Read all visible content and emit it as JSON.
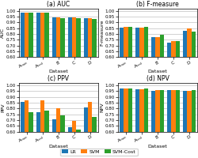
{
  "chart_data": [
    {
      "type": "bar",
      "title": "(a) AUC",
      "xlabel": "Dataset",
      "ylabel": "AUC",
      "categories": [
        "Aₜᵣₐᵢₙ",
        "Aₜₑₛₜ",
        "B",
        "C",
        "D"
      ],
      "series": [
        {
          "name": "LR",
          "values": [
            0.985,
            0.985,
            0.94,
            0.94,
            0.935
          ]
        },
        {
          "name": "SVM",
          "values": [
            0.985,
            0.985,
            0.94,
            0.94,
            0.935
          ]
        },
        {
          "name": "SVM-Cost",
          "values": [
            0.983,
            0.983,
            0.938,
            0.938,
            0.933
          ]
        }
      ],
      "ylim": [
        0.6,
        1.02
      ],
      "yticks": [
        {
          "value": 0.6,
          "label": "0.60"
        },
        0.65,
        {
          "value": 0.7,
          "label": "0.70"
        },
        0.75,
        {
          "value": 0.8,
          "label": "0.80"
        },
        0.85,
        {
          "value": 0.9,
          "label": "0.90"
        },
        0.95,
        {
          "value": 1.0,
          "label": "1.00"
        }
      ],
      "grid": true,
      "legend": "lower center"
    },
    {
      "type": "bar",
      "title": "(b) F-measure",
      "xlabel": "Dataset",
      "ylabel": "F-measure",
      "categories": [
        "Aₜᵣₐᵢₙ",
        "Aₜₑₛₜ",
        "B",
        "C",
        "D"
      ],
      "series": [
        {
          "name": "LR",
          "values": [
            0.855,
            0.855,
            0.775,
            0.725,
            0.83
          ]
        },
        {
          "name": "SVM",
          "values": [
            0.86,
            0.855,
            0.775,
            0.74,
            0.845
          ]
        },
        {
          "name": "SVM-Cost",
          "values": [
            0.86,
            0.86,
            0.79,
            0.74,
            0.82
          ]
        }
      ],
      "ylim": [
        0.6,
        1.02
      ],
      "yticks": [
        {
          "value": 0.6,
          "label": "0.60"
        },
        0.65,
        {
          "value": 0.7,
          "label": "0.70"
        },
        0.75,
        {
          "value": 0.8,
          "label": "0.80"
        },
        0.85,
        {
          "value": 0.9,
          "label": "0.90"
        },
        0.95,
        {
          "value": 1.0,
          "label": "1.00"
        }
      ],
      "grid": true,
      "legend": "lower center"
    },
    {
      "type": "bar",
      "title": "(c) PPV",
      "xlabel": "Dataset",
      "ylabel": "PPV",
      "categories": [
        "Aₜᵣₐᵢₙ",
        "Aₜₑₛₜ",
        "B",
        "C",
        "D"
      ],
      "series": [
        {
          "name": "LR",
          "values": [
            0.855,
            0.77,
            0.71,
            0.64,
            0.81
          ]
        },
        {
          "name": "SVM",
          "values": [
            0.87,
            0.87,
            0.8,
            0.69,
            0.855
          ]
        },
        {
          "name": "SVM-Cost",
          "values": [
            0.77,
            0.785,
            0.74,
            0.62,
            0.725
          ]
        }
      ],
      "ylim": [
        0.6,
        1.02
      ],
      "yticks": [
        {
          "value": 0.6,
          "label": "0.60"
        },
        0.65,
        {
          "value": 0.7,
          "label": "0.70"
        },
        0.75,
        {
          "value": 0.8,
          "label": "0.80"
        },
        0.85,
        {
          "value": 0.9,
          "label": "0.90"
        },
        0.95,
        {
          "value": 1.0,
          "label": "1.00"
        }
      ],
      "grid": true,
      "legend": "lower center"
    },
    {
      "type": "bar",
      "title": "(d) NPV",
      "xlabel": "Dataset",
      "ylabel": "NPV",
      "categories": [
        "Aₜᵣₐᵢₙ",
        "Aₜₑₛₜ",
        "B",
        "C",
        "D"
      ],
      "series": [
        {
          "name": "LR",
          "values": [
            0.975,
            0.965,
            0.955,
            0.96,
            0.95
          ]
        },
        {
          "name": "SVM",
          "values": [
            0.975,
            0.965,
            0.96,
            0.96,
            0.955
          ]
        },
        {
          "name": "SVM-Cost",
          "values": [
            0.975,
            0.97,
            0.96,
            0.962,
            0.958
          ]
        }
      ],
      "ylim": [
        0.6,
        1.02
      ],
      "yticks": [
        {
          "value": 0.6,
          "label": "0.60"
        },
        0.65,
        {
          "value": 0.7,
          "label": "0.70"
        },
        0.75,
        {
          "value": 0.8,
          "label": "0.80"
        },
        0.85,
        {
          "value": 0.9,
          "label": "0.90"
        },
        0.95,
        {
          "value": 1.0,
          "label": "1.00"
        }
      ],
      "grid": true,
      "legend": "lower center"
    }
  ]
}
